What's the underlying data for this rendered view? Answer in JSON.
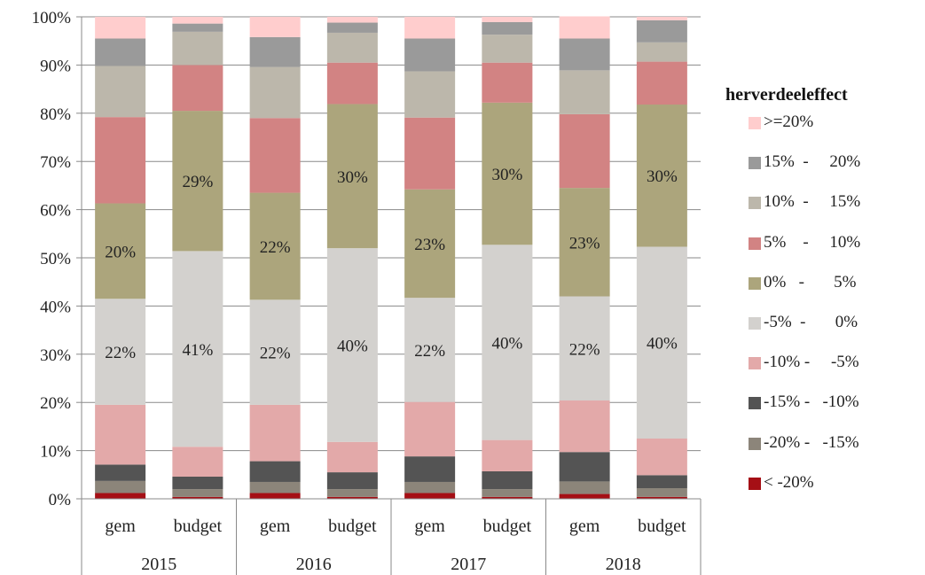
{
  "chart_data": {
    "type": "bar",
    "stacked": true,
    "y_axis_tick_labels": [
      "0%",
      "10%",
      "20%",
      "30%",
      "40%",
      "50%",
      "60%",
      "70%",
      "80%",
      "90%",
      "100%"
    ],
    "ylim": [
      0,
      100
    ],
    "grid": true,
    "legend_position": "right",
    "groups": [
      {
        "label": "2015",
        "bars": [
          "gem",
          "budget"
        ]
      },
      {
        "label": "2016",
        "bars": [
          "gem",
          "budget"
        ]
      },
      {
        "label": "2017",
        "bars": [
          "gem",
          "budget"
        ]
      },
      {
        "label": "2018",
        "bars": [
          "gem",
          "budget"
        ]
      }
    ],
    "categories": [
      "gem",
      "budget",
      "gem",
      "budget",
      "gem",
      "budget",
      "gem",
      "budget"
    ],
    "legend_title": "herverdeeleffect",
    "series": [
      {
        "name": "< -20%",
        "color": "#a50f15",
        "values": [
          1.2,
          0.4,
          1.2,
          0.4,
          1.2,
          0.4,
          1.0,
          0.4
        ]
      },
      {
        "name": "-20% -   -15%",
        "color": "#8c857a",
        "values": [
          2.5,
          1.6,
          2.3,
          1.6,
          2.3,
          1.6,
          2.6,
          1.8
        ]
      },
      {
        "name": "-15% -   -10%",
        "color": "#545454",
        "values": [
          3.4,
          2.6,
          4.3,
          3.5,
          5.3,
          3.7,
          6.1,
          2.7
        ]
      },
      {
        "name": "-10% -     -5%",
        "color": "#e3a9a9",
        "values": [
          12.4,
          6.2,
          11.7,
          6.3,
          11.3,
          6.5,
          10.7,
          7.6
        ]
      },
      {
        "name": "-5%  -       0%",
        "color": "#d3d1ce",
        "values": [
          22.0,
          40.6,
          21.8,
          40.2,
          21.6,
          40.5,
          21.6,
          39.8
        ]
      },
      {
        "name": "0%   -       5%",
        "color": "#aca57c",
        "values": [
          19.8,
          29.1,
          22.2,
          29.9,
          22.5,
          29.5,
          22.5,
          29.5
        ]
      },
      {
        "name": "5%    -     10%",
        "color": "#d28383",
        "values": [
          17.9,
          9.5,
          15.5,
          8.6,
          14.9,
          8.3,
          15.3,
          8.9
        ]
      },
      {
        "name": "10%  -     15%",
        "color": "#bcb7ab",
        "values": [
          10.6,
          6.9,
          10.6,
          6.2,
          9.6,
          5.8,
          9.1,
          4.0
        ]
      },
      {
        "name": "15%  -     20%",
        "color": "#9a9a9a",
        "values": [
          5.7,
          1.7,
          6.2,
          2.1,
          6.8,
          2.6,
          6.6,
          4.6
        ]
      },
      {
        "name": ">=20%",
        "color": "#ffcdcd",
        "values": [
          4.5,
          1.4,
          4.2,
          1.2,
          4.5,
          1.1,
          4.6,
          0.7
        ]
      }
    ],
    "data_labels": [
      {
        "bar": 0,
        "series": 4,
        "text": "22%"
      },
      {
        "bar": 0,
        "series": 5,
        "text": "20%"
      },
      {
        "bar": 1,
        "series": 4,
        "text": "41%"
      },
      {
        "bar": 1,
        "series": 5,
        "text": "29%"
      },
      {
        "bar": 2,
        "series": 4,
        "text": "22%"
      },
      {
        "bar": 2,
        "series": 5,
        "text": "22%"
      },
      {
        "bar": 3,
        "series": 4,
        "text": "40%"
      },
      {
        "bar": 3,
        "series": 5,
        "text": "30%"
      },
      {
        "bar": 4,
        "series": 4,
        "text": "22%"
      },
      {
        "bar": 4,
        "series": 5,
        "text": "23%"
      },
      {
        "bar": 5,
        "series": 4,
        "text": "40%"
      },
      {
        "bar": 5,
        "series": 5,
        "text": "30%"
      },
      {
        "bar": 6,
        "series": 4,
        "text": "22%"
      },
      {
        "bar": 6,
        "series": 5,
        "text": "23%"
      },
      {
        "bar": 7,
        "series": 4,
        "text": "40%"
      },
      {
        "bar": 7,
        "series": 5,
        "text": "30%"
      }
    ]
  }
}
